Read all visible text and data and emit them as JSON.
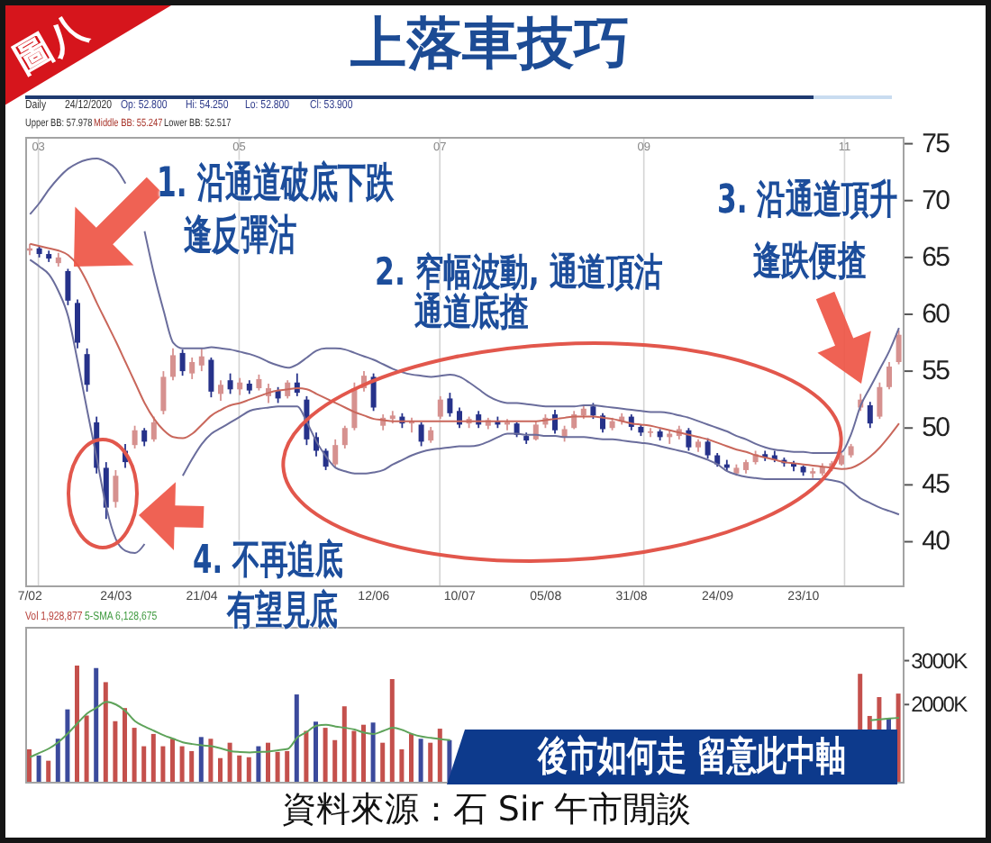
{
  "chart_data": [
    {
      "type": "candlestick",
      "title": "上落車技巧",
      "categories": [
        "7/02",
        null,
        null,
        null,
        null,
        null,
        null,
        null,
        null,
        "24/03",
        null,
        null,
        null,
        null,
        null,
        null,
        null,
        null,
        "21/04",
        null,
        null,
        null,
        null,
        null,
        null,
        null,
        null,
        null,
        null,
        null,
        null,
        null,
        null,
        null,
        null,
        null,
        "12/06",
        null,
        null,
        null,
        null,
        null,
        null,
        null,
        null,
        "10/07",
        null,
        null,
        null,
        null,
        null,
        null,
        null,
        null,
        "05/08",
        null,
        null,
        null,
        null,
        null,
        null,
        null,
        null,
        "31/08",
        null,
        null,
        null,
        null,
        null,
        null,
        null,
        null,
        "24/09",
        null,
        null,
        null,
        null,
        null,
        null,
        null,
        null,
        "23/10",
        null,
        null,
        null,
        null,
        null,
        null,
        null,
        null,
        null,
        null
      ],
      "ohlc": [
        [
          65.6,
          66.2,
          65.2,
          65.8
        ],
        [
          65.8,
          66.0,
          65.0,
          65.3
        ],
        [
          65.3,
          65.6,
          64.6,
          64.9
        ],
        [
          64.5,
          65.4,
          64.2,
          65.0
        ],
        [
          63.8,
          64.0,
          60.8,
          61.2
        ],
        [
          61.0,
          61.3,
          57.0,
          57.5
        ],
        [
          56.5,
          57.0,
          53.2,
          53.8
        ],
        [
          50.5,
          51.0,
          46.0,
          46.5
        ],
        [
          46.5,
          47.0,
          42.0,
          43.0
        ],
        [
          43.5,
          46.3,
          43.0,
          45.8
        ],
        [
          48.0,
          48.6,
          46.5,
          47.0
        ],
        [
          48.5,
          50.2,
          48.2,
          49.8
        ],
        [
          49.8,
          50.0,
          48.4,
          48.8
        ],
        [
          49.0,
          51.0,
          48.8,
          50.5
        ],
        [
          51.5,
          55.0,
          51.2,
          54.5
        ],
        [
          54.5,
          57.0,
          54.2,
          56.4
        ],
        [
          56.6,
          56.9,
          54.6,
          55.0
        ],
        [
          54.8,
          56.2,
          54.3,
          55.8
        ],
        [
          55.5,
          57.0,
          55.0,
          56.3
        ],
        [
          56.0,
          56.2,
          52.7,
          53.2
        ],
        [
          53.0,
          54.2,
          52.4,
          53.8
        ],
        [
          54.2,
          54.8,
          53.0,
          53.4
        ],
        [
          53.4,
          54.4,
          52.9,
          54.0
        ],
        [
          53.9,
          54.2,
          53.0,
          53.3
        ],
        [
          53.5,
          54.7,
          53.3,
          54.3
        ],
        [
          52.8,
          53.9,
          52.2,
          53.5
        ],
        [
          53.3,
          53.6,
          52.2,
          52.6
        ],
        [
          52.8,
          54.2,
          52.6,
          54.0
        ],
        [
          54.0,
          54.8,
          52.8,
          53.1
        ],
        [
          52.5,
          52.8,
          48.5,
          49.0
        ],
        [
          49.2,
          49.6,
          47.5,
          48.0
        ],
        [
          48.0,
          48.2,
          46.3,
          46.6
        ],
        [
          46.8,
          49.0,
          46.6,
          48.5
        ],
        [
          48.5,
          50.2,
          48.2,
          50.0
        ],
        [
          50.0,
          54.0,
          49.8,
          53.5
        ],
        [
          53.5,
          55.0,
          53.2,
          54.6
        ],
        [
          54.5,
          54.8,
          51.5,
          51.8
        ],
        [
          50.2,
          51.2,
          49.8,
          50.9
        ],
        [
          50.8,
          51.5,
          50.4,
          51.1
        ],
        [
          51.0,
          51.3,
          50.0,
          50.4
        ],
        [
          50.4,
          50.9,
          49.6,
          50.6
        ],
        [
          50.3,
          50.5,
          48.4,
          48.8
        ],
        [
          48.9,
          50.1,
          48.7,
          49.8
        ],
        [
          51.0,
          52.8,
          50.8,
          52.5
        ],
        [
          52.6,
          53.1,
          51.0,
          51.3
        ],
        [
          51.5,
          51.8,
          50.0,
          50.3
        ],
        [
          50.4,
          51.0,
          50.0,
          50.8
        ],
        [
          51.2,
          51.5,
          50.0,
          50.3
        ],
        [
          50.2,
          50.9,
          49.9,
          50.7
        ],
        [
          50.6,
          51.0,
          50.0,
          50.3
        ],
        [
          50.3,
          50.8,
          49.8,
          50.5
        ],
        [
          50.4,
          50.5,
          49.2,
          49.4
        ],
        [
          49.3,
          49.6,
          48.6,
          48.9
        ],
        [
          49.0,
          50.6,
          48.9,
          50.3
        ],
        [
          50.3,
          51.2,
          50.0,
          50.9
        ],
        [
          51.2,
          51.6,
          49.5,
          49.8
        ],
        [
          49.2,
          50.2,
          48.8,
          49.9
        ],
        [
          50.0,
          51.5,
          49.9,
          51.2
        ],
        [
          51.1,
          52.0,
          50.8,
          51.7
        ],
        [
          51.9,
          52.2,
          50.8,
          51.1
        ],
        [
          51.1,
          51.3,
          49.6,
          49.9
        ],
        [
          50.0,
          50.9,
          49.8,
          50.6
        ],
        [
          50.6,
          51.3,
          50.3,
          51.0
        ],
        [
          51.0,
          51.2,
          49.8,
          50.1
        ],
        [
          50.1,
          50.3,
          49.3,
          49.6
        ],
        [
          49.6,
          50.0,
          49.2,
          49.7
        ],
        [
          49.7,
          49.9,
          48.9,
          49.2
        ],
        [
          49.2,
          49.8,
          48.6,
          49.5
        ],
        [
          49.3,
          50.2,
          49.0,
          49.9
        ],
        [
          49.8,
          50.0,
          48.0,
          48.3
        ],
        [
          48.3,
          49.0,
          47.9,
          48.8
        ],
        [
          48.8,
          49.1,
          47.3,
          47.6
        ],
        [
          47.6,
          47.8,
          46.6,
          46.8
        ],
        [
          46.8,
          47.2,
          46.2,
          46.5
        ],
        [
          46.0,
          46.8,
          45.8,
          46.5
        ],
        [
          46.3,
          47.2,
          46.0,
          47.0
        ],
        [
          47.0,
          48.0,
          46.8,
          47.7
        ],
        [
          47.7,
          48.0,
          47.1,
          47.4
        ],
        [
          47.6,
          48.0,
          47.0,
          47.2
        ],
        [
          47.2,
          47.4,
          46.6,
          46.9
        ],
        [
          46.9,
          47.1,
          46.2,
          46.6
        ],
        [
          46.6,
          46.7,
          45.8,
          46.1
        ],
        [
          46.0,
          46.5,
          45.6,
          46.2
        ],
        [
          46.0,
          46.9,
          45.8,
          46.6
        ],
        [
          46.5,
          47.1,
          46.2,
          46.9
        ],
        [
          46.8,
          47.8,
          46.7,
          47.6
        ],
        [
          47.6,
          48.6,
          47.4,
          48.4
        ],
        [
          51.8,
          53.0,
          51.5,
          52.5
        ],
        [
          52.0,
          52.3,
          50.0,
          50.4
        ],
        [
          51.0,
          54.0,
          50.8,
          53.6
        ],
        [
          53.6,
          55.8,
          53.4,
          55.4
        ],
        [
          55.8,
          58.6,
          55.6,
          58.2
        ]
      ],
      "colors": [
        "#d6918f",
        "#26328a",
        "#26328a",
        "#d6918f",
        "#26328a",
        "#26328a",
        "#26328a",
        "#26328a",
        "#26328a",
        "#d6918f",
        "#26328a",
        "#d6918f",
        "#26328a",
        "#d6918f",
        "#d6918f",
        "#d6918f",
        "#26328a",
        "#d6918f",
        "#d6918f",
        "#26328a",
        "#d6918f",
        "#26328a",
        "#d6918f",
        "#26328a",
        "#d6918f",
        "#d6918f",
        "#26328a",
        "#d6918f",
        "#26328a",
        "#26328a",
        "#26328a",
        "#26328a",
        "#d6918f",
        "#d6918f",
        "#d6918f",
        "#d6918f",
        "#26328a",
        "#d6918f",
        "#d6918f",
        "#26328a",
        "#d6918f",
        "#26328a",
        "#d6918f",
        "#d6918f",
        "#26328a",
        "#26328a",
        "#d6918f",
        "#26328a",
        "#d6918f",
        "#26328a",
        "#d6918f",
        "#26328a",
        "#26328a",
        "#d6918f",
        "#d6918f",
        "#26328a",
        "#d6918f",
        "#d6918f",
        "#d6918f",
        "#26328a",
        "#26328a",
        "#d6918f",
        "#d6918f",
        "#26328a",
        "#26328a",
        "#d6918f",
        "#26328a",
        "#d6918f",
        "#d6918f",
        "#26328a",
        "#d6918f",
        "#26328a",
        "#26328a",
        "#26328a",
        "#d6918f",
        "#d6918f",
        "#d6918f",
        "#26328a",
        "#26328a",
        "#26328a",
        "#26328a",
        "#26328a",
        "#d6918f",
        "#d6918f",
        "#d6918f",
        "#d6918f",
        "#d6918f",
        "#d6918f",
        "#26328a",
        "#d6918f",
        "#d6918f",
        "#d6918f"
      ],
      "series": [
        {
          "type": "line",
          "color": "#6a6d9c",
          "values": [
            68.8,
            69.8,
            71.0,
            72.0,
            72.8,
            73.3,
            73.6,
            73.7,
            73.4,
            72.8,
            71.5,
            null,
            67.3,
            63.5,
            60.3,
            57.5,
            57.0,
            57.0,
            57.0,
            57.1,
            57.0,
            56.9,
            56.7,
            56.5,
            56.2,
            55.8,
            55.5,
            55.3,
            55.6,
            56.2,
            56.8,
            57.0,
            57.0,
            56.9,
            56.6,
            56.3,
            56.0,
            55.6,
            55.2,
            54.9,
            54.7,
            54.6,
            54.5,
            54.6,
            54.7,
            54.5,
            54.0,
            53.4,
            52.8,
            52.4,
            52.2,
            52.2,
            52.1,
            52.0,
            51.9,
            51.9,
            51.9,
            51.9,
            52.0,
            52.0,
            51.9,
            51.8,
            51.7,
            51.6,
            51.5,
            51.4,
            51.4,
            51.3,
            51.1,
            50.9,
            50.6,
            50.3,
            50.0,
            49.7,
            49.3,
            49.0,
            48.6,
            48.3,
            48.1,
            48.0,
            47.9,
            47.9,
            47.8,
            47.8,
            47.8,
            47.9,
            49.5,
            52.0,
            53.6,
            55.2,
            56.8,
            58.8
          ]
        },
        {
          "type": "line",
          "color": "#c9675b",
          "values": [
            66.2,
            66.0,
            65.8,
            65.6,
            65.2,
            64.3,
            62.8,
            61.0,
            59.3,
            57.6,
            55.8,
            54.0,
            52.2,
            50.8,
            49.8,
            49.2,
            49.1,
            49.5,
            50.3,
            51.1,
            51.6,
            52.0,
            52.2,
            52.5,
            52.8,
            53.1,
            53.3,
            53.4,
            53.5,
            53.4,
            53.0,
            52.6,
            52.2,
            51.8,
            51.4,
            51.1,
            50.8,
            50.7,
            50.6,
            50.6,
            50.6,
            50.6,
            50.6,
            50.6,
            50.6,
            50.6,
            50.6,
            50.6,
            50.6,
            50.6,
            50.6,
            50.6,
            50.6,
            50.6,
            50.7,
            50.8,
            50.9,
            51.0,
            51.0,
            51.0,
            50.9,
            50.8,
            50.6,
            50.4,
            50.3,
            50.2,
            50.0,
            49.8,
            49.6,
            49.4,
            49.2,
            49.0,
            48.7,
            48.4,
            48.1,
            47.9,
            47.6,
            47.4,
            47.2,
            47.0,
            46.9,
            46.8,
            46.7,
            46.6,
            46.5,
            46.4,
            46.5,
            46.9,
            47.5,
            48.3,
            49.3,
            50.4
          ]
        },
        {
          "type": "line",
          "color": "#6a6d9c",
          "values": [
            64.8,
            64.2,
            63.5,
            62.0,
            59.8,
            55.8,
            51.5,
            47.3,
            43.0,
            40.2,
            39.2,
            39.0,
            39.8,
            null,
            null,
            null,
            45.8,
            47.3,
            48.6,
            49.5,
            50.0,
            50.5,
            51.0,
            51.5,
            51.7,
            51.8,
            51.9,
            51.9,
            51.9,
            50.5,
            48.8,
            47.5,
            46.5,
            46.2,
            46.0,
            46.0,
            46.1,
            46.3,
            46.8,
            47.2,
            47.6,
            47.9,
            48.1,
            48.2,
            48.3,
            48.4,
            48.4,
            48.5,
            48.8,
            49.2,
            49.5,
            49.5,
            49.4,
            49.4,
            49.3,
            49.3,
            49.2,
            49.2,
            49.2,
            49.1,
            49.0,
            49.0,
            48.9,
            48.8,
            48.7,
            48.6,
            48.4,
            48.2,
            48.0,
            47.8,
            47.5,
            47.2,
            46.8,
            46.2,
            45.9,
            45.7,
            45.6,
            45.5,
            45.5,
            45.5,
            45.5,
            45.5,
            45.5,
            45.5,
            45.4,
            45.2,
            44.5,
            43.8,
            43.4,
            43.0,
            42.7,
            42.4
          ]
        }
      ],
      "ylim": [
        36,
        75.6
      ],
      "yticks": [
        40,
        45,
        50,
        55,
        60,
        65,
        70,
        75
      ],
      "x2lim": [
        "2020-02-26",
        "2020-11-19"
      ],
      "x2ticks": [
        {
          "value": "2020-03-01",
          "label": "03"
        },
        {
          "value": "2020-05-01",
          "label": "05"
        },
        {
          "value": "2020-07-01",
          "label": "07"
        },
        {
          "value": "2020-09-01",
          "label": "09"
        },
        {
          "value": "2020-11-01",
          "label": "11"
        }
      ],
      "grid": "x",
      "annotations": [
        "圖八",
        "Daily",
        "24/12/2020",
        "Op: 52.800",
        "Hi: 54.250",
        "Lo: 52.800",
        "Cl: 53.900",
        "Upper BB: 57.978",
        "Middle BB: 55.247",
        "Lower BB: 52.517",
        "1. 沿通道破底下跌",
        "逢反彈沽",
        "2. 窄幅波動, 通道頂沽",
        "通道底揸",
        "3. 沿通道頂升",
        "逢跌便揸",
        "4. 不再追底",
        "有望見底"
      ]
    },
    {
      "type": "bar",
      "categories": [
        null,
        null,
        null,
        null,
        null,
        null,
        null,
        null,
        null,
        null,
        null,
        null,
        null,
        null,
        null,
        null,
        null,
        null,
        null,
        null,
        null,
        null,
        null,
        null,
        null,
        null,
        null,
        null,
        null,
        null,
        null,
        null,
        null,
        null,
        null,
        null,
        null,
        null,
        null,
        null,
        null,
        null,
        null,
        null,
        null,
        null,
        null,
        null,
        null,
        null,
        null,
        null,
        null,
        null,
        null,
        null,
        null,
        null,
        null,
        null,
        null,
        null,
        null,
        null,
        null,
        null,
        null,
        null,
        null,
        null,
        null,
        null,
        null,
        null,
        null,
        null,
        null,
        null,
        null,
        null,
        null,
        null,
        null,
        null,
        null,
        null,
        null,
        null,
        null,
        null,
        null,
        null
      ],
      "series": [
        {
          "colors": [
            "#c4504c",
            "#3b4a9c",
            "#c4504c",
            "#3b4a9c",
            "#3b4a9c",
            "#c4504c",
            "#c4504c",
            "#3b4a9c",
            "#c4504c",
            "#c4504c",
            "#c4504c",
            "#c4504c",
            "#c4504c",
            "#c4504c",
            "#c4504c",
            "#c4504c",
            "#c4504c",
            "#c4504c",
            "#3b4a9c",
            "#c4504c",
            "#c4504c",
            "#c4504c",
            "#c4504c",
            "#c4504c",
            "#3b4a9c",
            "#c4504c",
            "#c4504c",
            "#c4504c",
            "#3b4a9c",
            "#c4504c",
            "#3b4a9c",
            "#c4504c",
            "#c4504c",
            "#c4504c",
            "#c4504c",
            "#c4504c",
            "#3b4a9c",
            "#c4504c",
            "#c4504c",
            "#c4504c",
            "#c4504c",
            "#3b4a9c",
            "#c4504c",
            "#c4504c",
            "#3b4a9c",
            null,
            null,
            null,
            null,
            null,
            null,
            null,
            null,
            null,
            null,
            null,
            null,
            null,
            null,
            null,
            null,
            null,
            null,
            null,
            null,
            null,
            null,
            null,
            null,
            null,
            null,
            null,
            null,
            null,
            null,
            null,
            null,
            null,
            null,
            null,
            null,
            null,
            null,
            null,
            null,
            null,
            null,
            "#c4504c",
            "#c4504c",
            "#c4504c",
            "#3b4a9c",
            "#c4504c"
          ],
          "values": [
            980,
            840,
            720,
            1220,
            1890,
            2890,
            1750,
            2830,
            2510,
            1620,
            1920,
            1470,
            1050,
            1330,
            1050,
            1220,
            1050,
            940,
            1260,
            1220,
            780,
            1130,
            840,
            800,
            1050,
            1130,
            920,
            940,
            2230,
            1400,
            1610,
            1470,
            1190,
            1960,
            1400,
            1540,
            1590,
            1130,
            2580,
            980,
            1330,
            1220,
            1130,
            1450,
            1190,
            null,
            null,
            null,
            null,
            null,
            null,
            null,
            null,
            null,
            null,
            null,
            null,
            null,
            null,
            null,
            null,
            null,
            null,
            null,
            null,
            null,
            null,
            null,
            null,
            null,
            null,
            null,
            null,
            null,
            null,
            null,
            null,
            null,
            null,
            null,
            null,
            null,
            null,
            null,
            null,
            null,
            null,
            2700,
            1740,
            2170,
            1690,
            2250
          ]
        },
        {
          "type": "line",
          "color": "#5ea35a",
          "values": [
            800,
            900,
            1000,
            1150,
            1350,
            1580,
            1800,
            1930,
            2060,
            2000,
            1850,
            1620,
            1500,
            1400,
            1300,
            1220,
            1140,
            1100,
            1070,
            1050,
            1000,
            940,
            920,
            910,
            920,
            930,
            960,
            990,
            1250,
            1380,
            1520,
            1540,
            1500,
            1470,
            1430,
            1360,
            1330,
            1400,
            1470,
            1420,
            1330,
            1270,
            1240,
            1210,
            1190,
            null,
            null,
            null,
            null,
            null,
            null,
            null,
            null,
            null,
            null,
            null,
            null,
            null,
            null,
            null,
            null,
            null,
            null,
            null,
            null,
            null,
            null,
            null,
            null,
            null,
            null,
            null,
            null,
            null,
            null,
            null,
            null,
            null,
            null,
            null,
            null,
            null,
            null,
            null,
            null,
            null,
            null,
            null,
            1640,
            1660,
            1680,
            1700
          ]
        }
      ],
      "ylim": [
        200,
        3770
      ],
      "yticks": [
        {
          "value": 2000,
          "label": "2000K"
        },
        {
          "value": 3000,
          "label": "3000K"
        }
      ],
      "annotations": [
        "Vol 1,928,877",
        "5-SMA 6,128,675",
        "後市如何走 留意此中軸",
        "資料來源：石 Sir 午市閒談"
      ]
    }
  ]
}
